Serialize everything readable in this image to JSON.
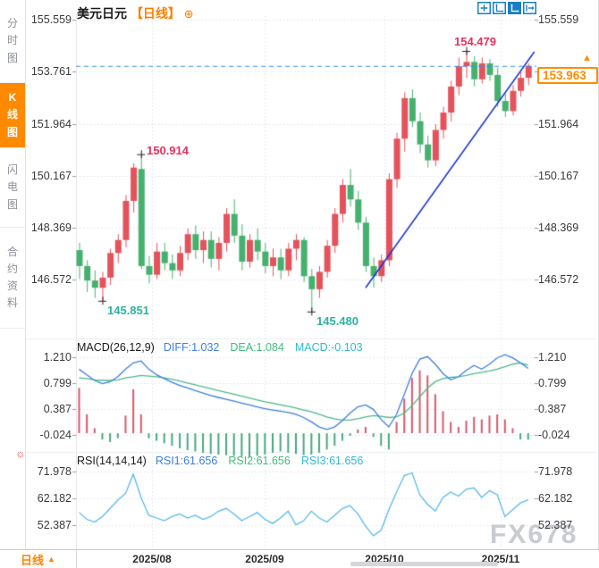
{
  "sidebar": {
    "items": [
      {
        "label": "分时图",
        "active": false
      },
      {
        "label": "K线图",
        "active": true
      },
      {
        "label": "闪电图",
        "active": false
      },
      {
        "label": "合约资料",
        "active": false
      }
    ]
  },
  "header": {
    "symbol": "美元日元",
    "period_tag": "【日线】"
  },
  "icons": {
    "plus_circle": "⊕",
    "up_arrow": "▲",
    "sun": "☼"
  },
  "toolbar": {
    "icons": [
      "crosshair",
      "axis-range",
      "axis-zoom-active",
      "exit"
    ]
  },
  "price_panel": {
    "current_price_label": "153.963",
    "y_tick_labels": [
      "155.559",
      "153.761",
      "151.964",
      "150.167",
      "148.369",
      "146.572"
    ]
  },
  "macd_panel": {
    "title": "MACD(26,12,9)",
    "diff_label": "DIFF:1.032",
    "dea_label": "DEA:1.084",
    "macd_label": "MACD:-0.103",
    "y_tick_labels": [
      "1.210",
      "0.799",
      "0.387",
      "-0.024"
    ]
  },
  "rsi_panel": {
    "title": "RSI(14,14,14)",
    "rsi1_label": "RSI1:61.656",
    "rsi2_label": "RSI2:61.656",
    "rsi3_label": "RSI3:61.656",
    "y_tick_labels": [
      "71.978",
      "62.182",
      "52.387"
    ]
  },
  "bottom_bar": {
    "period_label": "日线",
    "x_tick_labels": [
      "2025/08",
      "2025/09",
      "2025/10",
      "2025/11"
    ]
  },
  "watermark": "FX678",
  "colors": {
    "accent_orange": "#ff8400",
    "up_red": "#e4525c",
    "down_green": "#45b16e",
    "annotation_red": "#e8315b",
    "annotation_teal": "#2eb3a0",
    "price_line_blue": "#2b8df0",
    "trendline_blue": "#1732d2",
    "diff_blue": "#3b7fe0",
    "dea_green": "#4cb988",
    "macd_hist_red": "#d6596b",
    "macd_hist_green": "#46a97c",
    "rsi_blue": "#56b9e9",
    "grid": "#e0e0ea",
    "axis_text": "#3a3a3e",
    "toolbar_blue": "#1b7ec2"
  },
  "chart_data": [
    {
      "type": "candlestick",
      "symbol": "美元日元",
      "period": "日线",
      "y_axis": {
        "ticks": [
          155.559,
          153.761,
          151.964,
          150.167,
          148.369,
          146.572
        ]
      },
      "x_axis": {
        "ticks": [
          "2025/08",
          "2025/09",
          "2025/10",
          "2025/11"
        ]
      },
      "current_price": 153.963,
      "candles": [
        [
          147.6,
          147.85,
          146.6,
          147.05
        ],
        [
          147.05,
          147.25,
          146.15,
          146.55
        ],
        [
          146.55,
          146.9,
          145.95,
          146.3
        ],
        [
          146.3,
          146.85,
          145.851,
          146.65
        ],
        [
          146.65,
          147.65,
          146.4,
          147.5
        ],
        [
          147.5,
          148.15,
          147.15,
          147.95
        ],
        [
          147.95,
          149.5,
          147.7,
          149.3
        ],
        [
          149.3,
          150.6,
          148.9,
          150.45
        ],
        [
          150.4,
          150.914,
          146.95,
          147.05
        ],
        [
          147.05,
          147.4,
          146.45,
          146.75
        ],
        [
          146.75,
          147.85,
          146.6,
          147.55
        ],
        [
          147.55,
          147.85,
          146.9,
          147.15
        ],
        [
          147.15,
          147.45,
          146.6,
          146.9
        ],
        [
          146.9,
          147.75,
          146.7,
          147.5
        ],
        [
          147.5,
          148.35,
          147.25,
          148.15
        ],
        [
          148.15,
          148.45,
          147.3,
          147.6
        ],
        [
          147.6,
          148.25,
          147.15,
          147.95
        ],
        [
          147.95,
          148.25,
          147.0,
          147.3
        ],
        [
          147.3,
          148.05,
          146.9,
          147.85
        ],
        [
          147.85,
          149.05,
          147.55,
          148.85
        ],
        [
          148.85,
          149.35,
          147.85,
          148.1
        ],
        [
          148.1,
          148.5,
          146.9,
          147.2
        ],
        [
          147.2,
          148.15,
          147.0,
          147.95
        ],
        [
          147.95,
          148.35,
          147.25,
          147.55
        ],
        [
          147.55,
          147.85,
          146.8,
          147.05
        ],
        [
          147.05,
          147.65,
          146.7,
          147.35
        ],
        [
          147.35,
          147.65,
          146.6,
          146.9
        ],
        [
          146.9,
          147.85,
          146.7,
          147.65
        ],
        [
          147.65,
          148.15,
          147.25,
          147.95
        ],
        [
          147.95,
          148.05,
          146.5,
          146.7
        ],
        [
          146.7,
          146.95,
          145.48,
          146.25
        ],
        [
          146.25,
          147.05,
          145.95,
          146.85
        ],
        [
          146.85,
          147.95,
          146.65,
          147.75
        ],
        [
          147.75,
          149.05,
          147.5,
          148.85
        ],
        [
          148.85,
          150.05,
          148.55,
          149.85
        ],
        [
          149.85,
          150.4,
          149.1,
          149.35
        ],
        [
          149.35,
          149.65,
          148.3,
          148.55
        ],
        [
          148.55,
          148.75,
          146.85,
          147.05
        ],
        [
          147.05,
          147.35,
          146.3,
          146.7
        ],
        [
          146.7,
          147.45,
          146.5,
          147.25
        ],
        [
          147.25,
          150.25,
          147.05,
          150.05
        ],
        [
          150.05,
          151.65,
          149.75,
          151.45
        ],
        [
          151.45,
          153.05,
          151.0,
          152.85
        ],
        [
          152.85,
          153.15,
          151.85,
          152.05
        ],
        [
          152.05,
          152.35,
          150.95,
          151.25
        ],
        [
          151.25,
          151.55,
          150.45,
          150.7
        ],
        [
          150.7,
          151.95,
          150.5,
          151.75
        ],
        [
          151.75,
          152.55,
          151.45,
          152.35
        ],
        [
          152.35,
          153.45,
          152.05,
          153.25
        ],
        [
          153.25,
          154.25,
          152.95,
          153.95
        ],
        [
          153.95,
          154.479,
          153.55,
          154.1
        ],
        [
          154.1,
          154.3,
          153.25,
          153.5
        ],
        [
          153.5,
          154.25,
          153.35,
          154.05
        ],
        [
          154.05,
          154.2,
          153.45,
          153.65
        ],
        [
          153.65,
          153.9,
          152.55,
          152.75
        ],
        [
          152.75,
          153.0,
          152.2,
          152.4
        ],
        [
          152.4,
          153.3,
          152.25,
          153.1
        ],
        [
          153.1,
          153.75,
          152.9,
          153.55
        ],
        [
          153.55,
          154.05,
          153.3,
          153.963
        ]
      ],
      "annotations": [
        {
          "text": "154.479",
          "index": 50,
          "price": 154.479,
          "placement": "above",
          "color": "red"
        },
        {
          "text": "150.914",
          "index": 8,
          "price": 150.914,
          "placement": "above-right",
          "color": "red"
        },
        {
          "text": "145.851",
          "index": 3,
          "price": 145.851,
          "placement": "below-right",
          "color": "teal"
        },
        {
          "text": "145.480",
          "index": 30,
          "price": 145.48,
          "placement": "below-right",
          "color": "teal"
        }
      ],
      "trendline": {
        "from_index": 37,
        "from_price": 146.3,
        "to_index": 58.8,
        "to_price": 154.45
      }
    },
    {
      "type": "macd",
      "title": "MACD(26,12,9)",
      "ticks": [
        1.21,
        0.799,
        0.387,
        -0.024
      ],
      "last": {
        "diff": 1.032,
        "dea": 1.084,
        "macd": -0.103
      },
      "diff": [
        1.02,
        0.93,
        0.84,
        0.79,
        0.82,
        0.9,
        1.02,
        1.12,
        1.15,
        1.02,
        0.93,
        0.87,
        0.81,
        0.76,
        0.72,
        0.68,
        0.64,
        0.6,
        0.57,
        0.54,
        0.51,
        0.48,
        0.45,
        0.42,
        0.39,
        0.37,
        0.35,
        0.33,
        0.3,
        0.25,
        0.18,
        0.1,
        0.06,
        0.1,
        0.2,
        0.32,
        0.42,
        0.45,
        0.38,
        0.22,
        0.1,
        0.3,
        0.62,
        0.95,
        1.18,
        1.22,
        1.1,
        0.95,
        0.85,
        0.9,
        1.0,
        1.08,
        1.02,
        1.1,
        1.2,
        1.25,
        1.2,
        1.12,
        1.032
      ],
      "dea": [
        0.88,
        0.87,
        0.85,
        0.84,
        0.84,
        0.85,
        0.88,
        0.9,
        0.92,
        0.91,
        0.9,
        0.88,
        0.86,
        0.83,
        0.8,
        0.77,
        0.74,
        0.71,
        0.68,
        0.65,
        0.62,
        0.59,
        0.56,
        0.53,
        0.5,
        0.48,
        0.45,
        0.43,
        0.4,
        0.37,
        0.34,
        0.3,
        0.26,
        0.23,
        0.21,
        0.21,
        0.23,
        0.26,
        0.28,
        0.27,
        0.25,
        0.26,
        0.32,
        0.44,
        0.58,
        0.72,
        0.82,
        0.87,
        0.89,
        0.9,
        0.92,
        0.95,
        0.97,
        0.99,
        1.02,
        1.06,
        1.1,
        1.12,
        1.084
      ],
      "hist": [
        0.72,
        0.3,
        0.08,
        -0.1,
        -0.14,
        -0.08,
        0.28,
        0.7,
        0.3,
        -0.08,
        -0.12,
        -0.16,
        -0.2,
        -0.24,
        -0.27,
        -0.29,
        -0.31,
        -0.33,
        -0.34,
        -0.35,
        -0.36,
        -0.37,
        -0.38,
        -0.36,
        -0.34,
        -0.31,
        -0.29,
        -0.31,
        -0.33,
        -0.35,
        -0.34,
        -0.31,
        -0.26,
        -0.2,
        -0.12,
        -0.04,
        0.06,
        0.1,
        -0.06,
        -0.2,
        -0.26,
        0.18,
        0.55,
        0.88,
        1.0,
        0.92,
        0.62,
        0.35,
        0.18,
        0.1,
        0.2,
        0.26,
        0.22,
        0.28,
        0.3,
        0.22,
        0.08,
        -0.1,
        -0.103
      ]
    },
    {
      "type": "rsi",
      "title": "RSI(14,14,14)",
      "ticks": [
        71.978,
        62.182,
        52.387
      ],
      "last": {
        "rsi1": 61.656,
        "rsi2": 61.656,
        "rsi3": 61.656
      },
      "rsi": [
        57.0,
        54.5,
        53.5,
        55.5,
        58.5,
        61.5,
        64.0,
        71.0,
        62.5,
        56.0,
        55.0,
        54.0,
        55.5,
        56.5,
        55.0,
        56.0,
        54.5,
        55.5,
        57.5,
        58.5,
        56.5,
        54.0,
        55.5,
        57.0,
        54.5,
        53.0,
        55.0,
        57.5,
        52.5,
        54.0,
        57.5,
        55.0,
        53.5,
        56.0,
        58.5,
        59.5,
        56.5,
        52.0,
        48.5,
        50.5,
        58.0,
        64.5,
        70.5,
        71.5,
        63.5,
        60.0,
        57.5,
        62.5,
        64.5,
        63.0,
        65.5,
        66.0,
        62.5,
        65.0,
        63.5,
        55.5,
        58.0,
        60.5,
        61.656
      ]
    }
  ]
}
